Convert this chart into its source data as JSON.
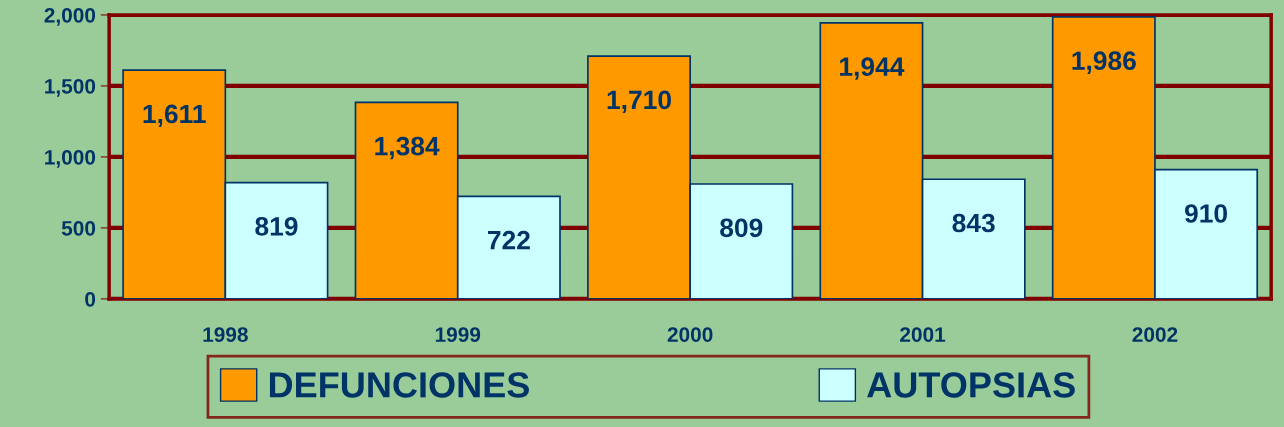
{
  "chart_data": {
    "type": "bar",
    "categories": [
      "1998",
      "1999",
      "2000",
      "2001",
      "2002"
    ],
    "series": [
      {
        "name": "DEFUNCIONES",
        "color": "#ff9900",
        "values": [
          1611,
          1384,
          1710,
          1944,
          1986
        ],
        "value_labels": [
          "1,611",
          "1,384",
          "1,710",
          "1,944",
          "1,986"
        ]
      },
      {
        "name": "AUTOPSIAS",
        "color": "#ccffff",
        "values": [
          819,
          722,
          809,
          843,
          910
        ],
        "value_labels": [
          "819",
          "722",
          "809",
          "843",
          "910"
        ]
      }
    ],
    "ylim": [
      0,
      2000
    ],
    "yticks": [
      {
        "value": 0,
        "label": "0"
      },
      {
        "value": 500,
        "label": "500"
      },
      {
        "value": 1000,
        "label": "1,000"
      },
      {
        "value": 1500,
        "label": "1,500"
      },
      {
        "value": 2000,
        "label": "2,000"
      }
    ],
    "grid": "y",
    "legend": "bottom"
  }
}
